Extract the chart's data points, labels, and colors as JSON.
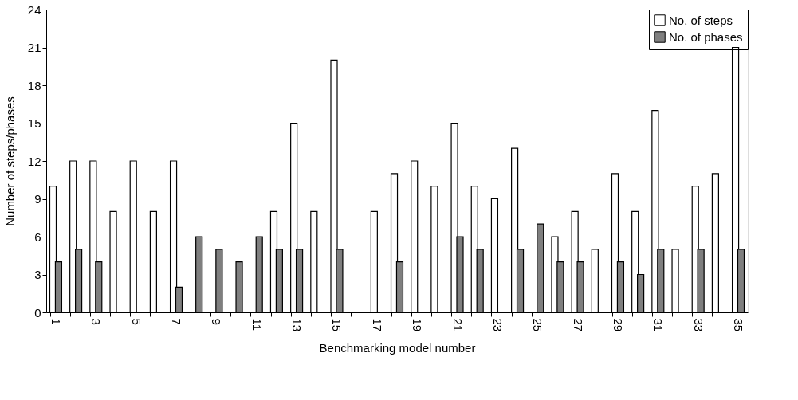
{
  "chart_data": {
    "type": "bar",
    "xlabel": "Benchmarking model number",
    "ylabel": "Number of steps/phases",
    "categories": [
      "1",
      null,
      "3",
      null,
      "5",
      null,
      "7",
      null,
      "9",
      null,
      "11",
      null,
      "13",
      null,
      "15",
      null,
      "17",
      null,
      "19",
      null,
      "21",
      null,
      "23",
      null,
      "25",
      null,
      "27",
      null,
      "29",
      null,
      "31",
      null,
      "33",
      null,
      "35"
    ],
    "series": [
      {
        "name": "No. of steps",
        "color": "#ffffff",
        "values": [
          10,
          12,
          12,
          8,
          12,
          8,
          12,
          null,
          null,
          null,
          null,
          8,
          15,
          8,
          20,
          null,
          8,
          11,
          12,
          10,
          15,
          10,
          9,
          13,
          null,
          6,
          8,
          5,
          11,
          8,
          16,
          5,
          10,
          11,
          21
        ]
      },
      {
        "name": "No. of phases",
        "color": "#7f7f7f",
        "values": [
          4,
          5,
          4,
          null,
          null,
          null,
          2,
          6,
          5,
          4,
          6,
          5,
          5,
          null,
          5,
          null,
          null,
          4,
          null,
          null,
          6,
          5,
          null,
          5,
          7,
          4,
          4,
          null,
          4,
          3,
          5,
          null,
          5,
          null,
          5
        ]
      }
    ],
    "ylim": [
      0,
      24
    ],
    "yticks": [
      0,
      3,
      6,
      9,
      12,
      15,
      18,
      21,
      24
    ],
    "grid": false,
    "legend": "top right"
  }
}
